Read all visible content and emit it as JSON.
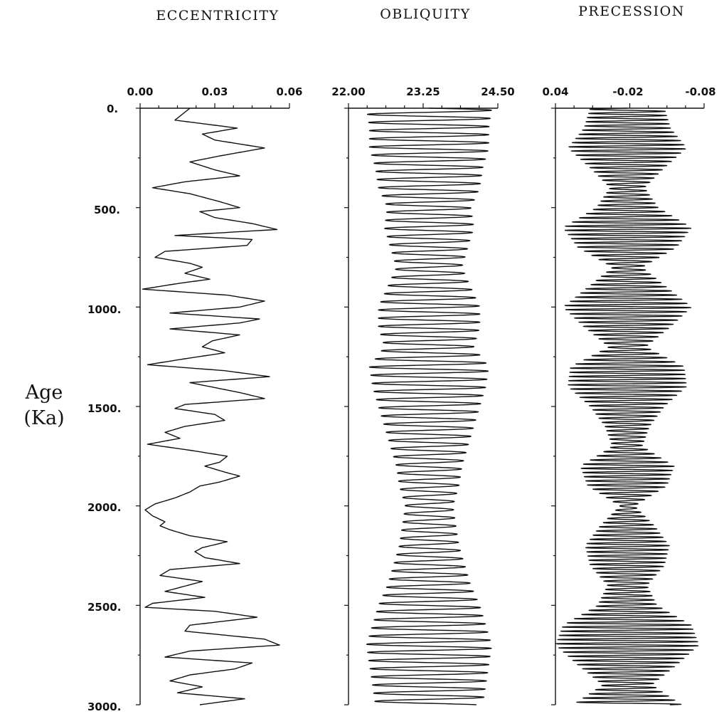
{
  "y_axis": {
    "label_line1": "Age",
    "label_line2": "(Ka)",
    "ticks": [
      "0.",
      "500.",
      "1000.",
      "1500.",
      "2000.",
      "2500.",
      "3000."
    ],
    "range": [
      0,
      3000
    ],
    "direction": "down"
  },
  "chart_data": [
    {
      "type": "line",
      "title": "ECCENTRICITY",
      "x_ticks": [
        "0.00",
        "0.03",
        "0.06"
      ],
      "xlim": [
        0.0,
        0.06
      ],
      "y": [
        0,
        20,
        60,
        100,
        130,
        160,
        200,
        240,
        270,
        310,
        340,
        370,
        400,
        430,
        470,
        500,
        520,
        550,
        580,
        610,
        640,
        660,
        690,
        720,
        750,
        780,
        800,
        830,
        860,
        880,
        910,
        940,
        970,
        1000,
        1030,
        1060,
        1080,
        1110,
        1140,
        1170,
        1200,
        1230,
        1260,
        1290,
        1320,
        1350,
        1380,
        1400,
        1430,
        1460,
        1490,
        1510,
        1540,
        1570,
        1600,
        1630,
        1660,
        1690,
        1720,
        1750,
        1780,
        1800,
        1830,
        1850,
        1880,
        1900,
        1930,
        1960,
        1990,
        2020,
        2050,
        2080,
        2100,
        2120,
        2150,
        2180,
        2210,
        2230,
        2260,
        2290,
        2320,
        2350,
        2380,
        2410,
        2430,
        2460,
        2490,
        2510,
        2530,
        2560,
        2600,
        2630,
        2670,
        2700,
        2730,
        2760,
        2790,
        2820,
        2850,
        2880,
        2910,
        2940,
        2970,
        3000
      ],
      "values": [
        0.02,
        0.018,
        0.014,
        0.039,
        0.025,
        0.03,
        0.05,
        0.032,
        0.02,
        0.03,
        0.04,
        0.018,
        0.005,
        0.02,
        0.032,
        0.04,
        0.024,
        0.03,
        0.045,
        0.055,
        0.014,
        0.045,
        0.043,
        0.01,
        0.006,
        0.02,
        0.025,
        0.018,
        0.028,
        0.016,
        0.001,
        0.035,
        0.05,
        0.04,
        0.012,
        0.048,
        0.04,
        0.012,
        0.04,
        0.029,
        0.025,
        0.034,
        0.018,
        0.003,
        0.034,
        0.052,
        0.02,
        0.028,
        0.04,
        0.05,
        0.018,
        0.014,
        0.03,
        0.034,
        0.018,
        0.01,
        0.016,
        0.003,
        0.02,
        0.035,
        0.032,
        0.026,
        0.034,
        0.04,
        0.032,
        0.024,
        0.02,
        0.014,
        0.006,
        0.002,
        0.005,
        0.01,
        0.008,
        0.012,
        0.02,
        0.035,
        0.025,
        0.022,
        0.026,
        0.04,
        0.012,
        0.008,
        0.025,
        0.016,
        0.01,
        0.026,
        0.005,
        0.002,
        0.03,
        0.047,
        0.02,
        0.018,
        0.05,
        0.056,
        0.02,
        0.01,
        0.045,
        0.038,
        0.02,
        0.012,
        0.025,
        0.015,
        0.042,
        0.024
      ]
    },
    {
      "type": "line",
      "title": "OBLIQUITY",
      "x_ticks": [
        "22.00",
        "23.25",
        "24.50"
      ],
      "xlim": [
        22.0,
        24.5
      ],
      "period_ka": 41,
      "mean": 23.35,
      "y_range": [
        0,
        3000
      ],
      "amplitude": {
        "y": [
          0,
          100,
          200,
          300,
          400,
          500,
          600,
          700,
          800,
          900,
          1000,
          1100,
          1200,
          1300,
          1400,
          1500,
          1600,
          1700,
          1800,
          1900,
          2000,
          2100,
          2200,
          2300,
          2400,
          2500,
          2600,
          2700,
          2800,
          2900,
          3000
        ],
        "values": [
          1.05,
          1.0,
          1.0,
          0.9,
          0.85,
          0.7,
          0.75,
          0.65,
          0.55,
          0.7,
          0.85,
          0.85,
          0.75,
          1.0,
          0.95,
          0.85,
          0.75,
          0.65,
          0.55,
          0.5,
          0.4,
          0.45,
          0.5,
          0.6,
          0.7,
          0.85,
          0.95,
          1.05,
          1.0,
          0.95,
          0.9
        ]
      }
    },
    {
      "type": "line",
      "title": "PRECESSION",
      "x_ticks": [
        "0.04",
        "-0.02",
        "-0.08"
      ],
      "xlim": [
        0.04,
        -0.08
      ],
      "period_ka": 21,
      "mean": -0.018,
      "y_range": [
        0,
        3000
      ],
      "amplitude": {
        "y": [
          0,
          100,
          200,
          300,
          400,
          500,
          600,
          700,
          800,
          900,
          1000,
          1100,
          1200,
          1300,
          1400,
          1500,
          1600,
          1700,
          1800,
          1900,
          2000,
          2100,
          2200,
          2300,
          2400,
          2500,
          2600,
          2700,
          2800,
          2900,
          3000
        ],
        "values": [
          0.03,
          0.035,
          0.048,
          0.03,
          0.014,
          0.025,
          0.052,
          0.04,
          0.012,
          0.032,
          0.052,
          0.035,
          0.015,
          0.046,
          0.048,
          0.03,
          0.018,
          0.012,
          0.038,
          0.032,
          0.006,
          0.022,
          0.034,
          0.03,
          0.016,
          0.024,
          0.052,
          0.058,
          0.04,
          0.02,
          0.044
        ]
      }
    }
  ]
}
